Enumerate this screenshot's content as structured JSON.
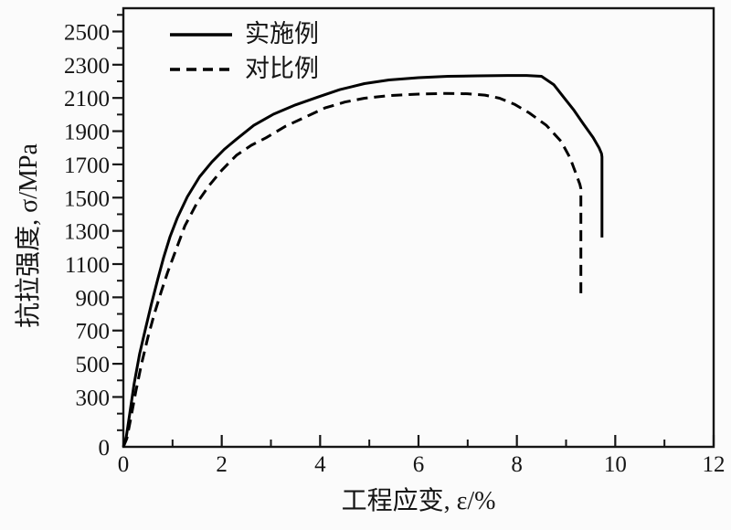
{
  "page": {
    "background": "#fbfbfb",
    "ink": "#151515"
  },
  "chart_data": {
    "type": "line",
    "title": "",
    "xlabel": "工程应变, ε/%",
    "ylabel": "抗拉强度, σ/MPa",
    "xlim": [
      0,
      12
    ],
    "ylim": [
      0,
      2640
    ],
    "grid": false,
    "legend_position": "top-left-inside",
    "x_major_ticks": [
      0,
      2,
      4,
      6,
      8,
      10,
      12
    ],
    "x_tick_labels": [
      "0",
      "2",
      "4",
      "6",
      "8",
      "10",
      "12"
    ],
    "x_minor_ticks": [
      1,
      3,
      5,
      7,
      9,
      11
    ],
    "y_label_values": [
      0,
      300,
      500,
      700,
      900,
      1100,
      1300,
      1500,
      1700,
      1900,
      2100,
      2300,
      2500
    ],
    "y_tick_labels": [
      "0",
      "300",
      "500",
      "700",
      "900",
      "1100",
      "1300",
      "1500",
      "1700",
      "1900",
      "2100",
      "2300",
      "2500"
    ],
    "y_major_ticks": [
      300,
      500,
      700,
      900,
      1100,
      1300,
      1500,
      1700,
      1900,
      2100,
      2300,
      2500
    ],
    "y_minor_ticks": [
      100,
      200,
      400,
      600,
      800,
      1000,
      1200,
      1400,
      1600,
      1800,
      2000,
      2200,
      2400,
      2600
    ],
    "series": [
      {
        "name": "实施例",
        "line_style": "solid",
        "color": "#000000",
        "points": [
          [
            0,
            0
          ],
          [
            0.06,
            60
          ],
          [
            0.13,
            200
          ],
          [
            0.22,
            380
          ],
          [
            0.33,
            560
          ],
          [
            0.45,
            710
          ],
          [
            0.57,
            860
          ],
          [
            0.7,
            1010
          ],
          [
            0.82,
            1140
          ],
          [
            0.95,
            1265
          ],
          [
            1.1,
            1380
          ],
          [
            1.3,
            1505
          ],
          [
            1.55,
            1625
          ],
          [
            1.8,
            1715
          ],
          [
            2.05,
            1790
          ],
          [
            2.3,
            1852
          ],
          [
            2.65,
            1935
          ],
          [
            3.05,
            2002
          ],
          [
            3.5,
            2058
          ],
          [
            3.95,
            2105
          ],
          [
            4.4,
            2150
          ],
          [
            4.9,
            2186
          ],
          [
            5.4,
            2208
          ],
          [
            6.0,
            2222
          ],
          [
            6.6,
            2230
          ],
          [
            7.2,
            2233
          ],
          [
            7.8,
            2235
          ],
          [
            8.2,
            2235
          ],
          [
            8.5,
            2230
          ],
          [
            8.75,
            2180
          ],
          [
            8.95,
            2105
          ],
          [
            9.15,
            2030
          ],
          [
            9.35,
            1945
          ],
          [
            9.55,
            1862
          ],
          [
            9.67,
            1800
          ],
          [
            9.72,
            1765
          ],
          [
            9.73,
            1745
          ],
          [
            9.73,
            1260
          ]
        ]
      },
      {
        "name": "对比例",
        "line_style": "dashed",
        "color": "#000000",
        "points": [
          [
            0,
            0
          ],
          [
            0.07,
            50
          ],
          [
            0.15,
            170
          ],
          [
            0.25,
            330
          ],
          [
            0.37,
            500
          ],
          [
            0.5,
            660
          ],
          [
            0.63,
            800
          ],
          [
            0.77,
            935
          ],
          [
            0.9,
            1050
          ],
          [
            1.05,
            1170
          ],
          [
            1.25,
            1330
          ],
          [
            1.5,
            1470
          ],
          [
            1.75,
            1575
          ],
          [
            2.0,
            1665
          ],
          [
            2.3,
            1755
          ],
          [
            2.6,
            1815
          ],
          [
            2.9,
            1860
          ],
          [
            3.3,
            1930
          ],
          [
            3.7,
            1985
          ],
          [
            4.1,
            2040
          ],
          [
            4.5,
            2075
          ],
          [
            4.9,
            2098
          ],
          [
            5.4,
            2114
          ],
          [
            6.0,
            2123
          ],
          [
            6.5,
            2127
          ],
          [
            7.0,
            2125
          ],
          [
            7.35,
            2117
          ],
          [
            7.65,
            2098
          ],
          [
            7.95,
            2062
          ],
          [
            8.25,
            2010
          ],
          [
            8.6,
            1935
          ],
          [
            8.9,
            1838
          ],
          [
            9.08,
            1740
          ],
          [
            9.2,
            1645
          ],
          [
            9.28,
            1580
          ],
          [
            9.3,
            1555
          ],
          [
            9.3,
            915
          ]
        ]
      }
    ]
  }
}
